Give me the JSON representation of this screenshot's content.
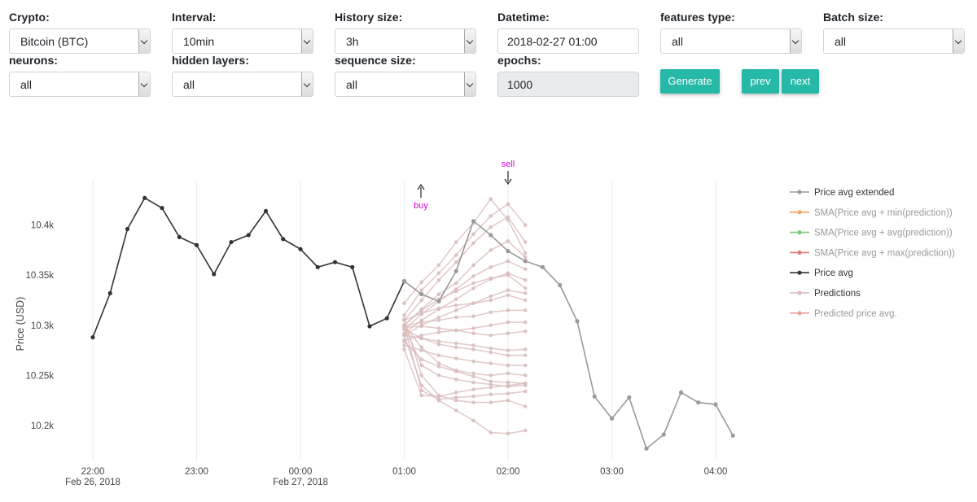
{
  "controls": {
    "crypto": {
      "label": "Crypto:",
      "value": "Bitcoin (BTC)"
    },
    "interval": {
      "label": "Interval:",
      "value": "10min"
    },
    "history_size": {
      "label": "History size:",
      "value": "3h"
    },
    "datetime": {
      "label": "Datetime:",
      "value": "2018-02-27 01:00"
    },
    "features_type": {
      "label": "features type:",
      "value": "all"
    },
    "batch_size": {
      "label": "Batch size:",
      "value": "all"
    },
    "neurons": {
      "label": "neurons:",
      "value": "all"
    },
    "hidden_layers": {
      "label": "hidden layers:",
      "value": "all"
    },
    "sequence_size": {
      "label": "sequence size:",
      "value": "all"
    },
    "epochs": {
      "label": "epochs:",
      "value": "1000"
    }
  },
  "buttons": {
    "generate": "Generate",
    "prev": "prev",
    "next": "next"
  },
  "annotations": {
    "buy": "buy",
    "sell": "sell"
  },
  "colors": {
    "accent": "#26b9a7",
    "annotation": "#dd00dd",
    "price_avg": "#333333",
    "price_avg_extended": "#999999",
    "predictions": "#d9bcbc",
    "sma_min": "#f5a55a",
    "sma_avg": "#7ec77a",
    "sma_max": "#e07a78",
    "predicted_avg": "#efa0a0"
  },
  "chart_data": {
    "type": "line",
    "ylabel": "Price (USD)",
    "xlabel": "",
    "yticks": [
      {
        "value": 10200,
        "label": "10.2k"
      },
      {
        "value": 10250,
        "label": "10.25k"
      },
      {
        "value": 10300,
        "label": "10.3k"
      },
      {
        "value": 10350,
        "label": "10.35k"
      },
      {
        "value": 10400,
        "label": "10.4k"
      }
    ],
    "ylim": [
      10160,
      10440
    ],
    "xlim": [
      0,
      380
    ],
    "xticks": [
      {
        "value": 0,
        "label": "22:00",
        "sublabel": "Feb 26, 2018"
      },
      {
        "value": 60,
        "label": "23:00",
        "sublabel": ""
      },
      {
        "value": 120,
        "label": "00:00",
        "sublabel": "Feb 27, 2018"
      },
      {
        "value": 180,
        "label": "01:00",
        "sublabel": ""
      },
      {
        "value": 240,
        "label": "02:00",
        "sublabel": ""
      },
      {
        "value": 300,
        "label": "03:00",
        "sublabel": ""
      },
      {
        "value": 360,
        "label": "04:00",
        "sublabel": ""
      }
    ],
    "x_unit": "minutes since 2018-02-26 22:00",
    "legend_position": "right",
    "legend": [
      {
        "name": "Price avg extended",
        "key": "price_avg_extended"
      },
      {
        "name": "SMA(Price avg + min(prediction))",
        "key": "sma_min"
      },
      {
        "name": "SMA(Price avg + avg(prediction))",
        "key": "sma_avg"
      },
      {
        "name": "SMA(Price avg + max(prediction))",
        "key": "sma_max"
      },
      {
        "name": "Price avg",
        "key": "price_avg"
      },
      {
        "name": "Predictions",
        "key": "predictions"
      },
      {
        "name": "Predicted price avg.",
        "key": "predicted_avg"
      }
    ],
    "series": [
      {
        "name": "Price avg",
        "x": [
          0,
          10,
          20,
          30,
          40,
          50,
          60,
          70,
          80,
          90,
          100,
          110,
          120,
          130,
          140,
          150,
          160,
          170,
          180
        ],
        "y": [
          10288,
          10332,
          10396,
          10427,
          10417,
          10388,
          10380,
          10351,
          10383,
          10390,
          10414,
          10386,
          10376,
          10358,
          10363,
          10358,
          10299,
          10307,
          10344
        ]
      },
      {
        "name": "Price avg extended",
        "x": [
          180,
          190,
          200,
          210,
          220,
          230,
          240,
          250,
          260,
          270,
          280,
          290,
          300,
          310,
          320,
          330,
          340,
          350,
          360,
          370
        ],
        "y": [
          10344,
          10331,
          10324,
          10354,
          10404,
          10390,
          10374,
          10364,
          10358,
          10340,
          10304,
          10229,
          10207,
          10228,
          10177,
          10191,
          10233,
          10223,
          10221,
          10190
        ]
      }
    ],
    "predictions": [
      {
        "x": [
          180,
          190,
          200,
          210,
          220,
          230,
          240,
          250
        ],
        "y": [
          10310,
          10335,
          10352,
          10370,
          10391,
          10409,
          10421,
          10400
        ]
      },
      {
        "x": [
          180,
          190,
          200,
          210,
          220,
          230,
          240,
          250
        ],
        "y": [
          10305,
          10325,
          10345,
          10363,
          10382,
          10398,
          10408,
          10383
        ]
      },
      {
        "x": [
          180,
          190,
          200,
          210,
          220,
          230,
          240,
          250
        ],
        "y": [
          10322,
          10343,
          10360,
          10383,
          10402,
          10426,
          10405,
          10372
        ]
      },
      {
        "x": [
          180,
          190,
          200,
          210,
          220,
          230,
          240,
          250
        ],
        "y": [
          10300,
          10316,
          10331,
          10342,
          10360,
          10375,
          10384,
          10368
        ]
      },
      {
        "x": [
          180,
          190,
          200,
          210,
          220,
          230,
          240,
          250
        ],
        "y": [
          10296,
          10311,
          10324,
          10336,
          10349,
          10358,
          10364,
          10356
        ]
      },
      {
        "x": [
          180,
          190,
          200,
          210,
          220,
          230,
          240,
          250
        ],
        "y": [
          10292,
          10305,
          10316,
          10326,
          10337,
          10346,
          10352,
          10345
        ]
      },
      {
        "x": [
          180,
          190,
          200,
          210,
          220,
          230,
          240,
          250
        ],
        "y": [
          10300,
          10315,
          10326,
          10334,
          10342,
          10347,
          10350,
          10337
        ]
      },
      {
        "x": [
          180,
          190,
          200,
          210,
          220,
          230,
          240,
          250
        ],
        "y": [
          10290,
          10300,
          10308,
          10315,
          10322,
          10329,
          10335,
          10332
        ]
      },
      {
        "x": [
          180,
          190,
          200,
          210,
          220,
          230,
          240,
          250
        ],
        "y": [
          10305,
          10312,
          10317,
          10320,
          10322,
          10325,
          10330,
          10325
        ]
      },
      {
        "x": [
          180,
          190,
          200,
          210,
          220,
          230,
          240,
          250
        ],
        "y": [
          10299,
          10303,
          10305,
          10308,
          10309,
          10313,
          10315,
          10315
        ]
      },
      {
        "x": [
          180,
          190,
          200,
          210,
          220,
          230,
          240,
          250
        ],
        "y": [
          10285,
          10290,
          10293,
          10295,
          10297,
          10300,
          10303,
          10303
        ]
      },
      {
        "x": [
          180,
          190,
          200,
          210,
          220,
          230,
          240,
          250
        ],
        "y": [
          10298,
          10299,
          10297,
          10295,
          10292,
          10290,
          10292,
          10294
        ]
      },
      {
        "x": [
          180,
          190,
          200,
          210,
          220,
          230,
          240,
          250
        ],
        "y": [
          10290,
          10287,
          10284,
          10282,
          10280,
          10277,
          10275,
          10276
        ]
      },
      {
        "x": [
          180,
          190,
          200,
          210,
          220,
          230,
          240,
          250
        ],
        "y": [
          10296,
          10287,
          10281,
          10278,
          10276,
          10273,
          10270,
          10270
        ]
      },
      {
        "x": [
          180,
          190,
          200,
          210,
          220,
          230,
          240,
          250
        ],
        "y": [
          10280,
          10275,
          10270,
          10267,
          10264,
          10262,
          10260,
          10260
        ]
      },
      {
        "x": [
          180,
          190,
          200,
          210,
          220,
          230,
          240,
          250
        ],
        "y": [
          10300,
          10278,
          10262,
          10255,
          10252,
          10250,
          10252,
          10250
        ]
      },
      {
        "x": [
          180,
          190,
          200,
          210,
          220,
          230,
          240,
          250
        ],
        "y": [
          10284,
          10266,
          10259,
          10254,
          10249,
          10244,
          10243,
          10242
        ]
      },
      {
        "x": [
          180,
          190,
          200,
          210,
          220,
          230,
          240,
          250
        ],
        "y": [
          10300,
          10260,
          10250,
          10246,
          10243,
          10241,
          10239,
          10240
        ]
      },
      {
        "x": [
          180,
          190,
          200,
          210,
          220,
          230,
          240,
          250
        ],
        "y": [
          10276,
          10230,
          10229,
          10233,
          10236,
          10238,
          10240,
          10242
        ]
      },
      {
        "x": [
          180,
          190,
          200,
          210,
          220,
          230,
          240,
          250
        ],
        "y": [
          10300,
          10235,
          10226,
          10228,
          10229,
          10231,
          10232,
          10234
        ]
      },
      {
        "x": [
          180,
          190,
          200,
          210,
          220,
          230,
          240,
          250
        ],
        "y": [
          10306,
          10250,
          10230,
          10225,
          10223,
          10223,
          10225,
          10219
        ]
      },
      {
        "x": [
          180,
          190,
          200,
          210,
          220,
          230,
          240,
          250
        ],
        "y": [
          10290,
          10240,
          10225,
          10215,
          10205,
          10193,
          10192,
          10195
        ]
      }
    ]
  }
}
